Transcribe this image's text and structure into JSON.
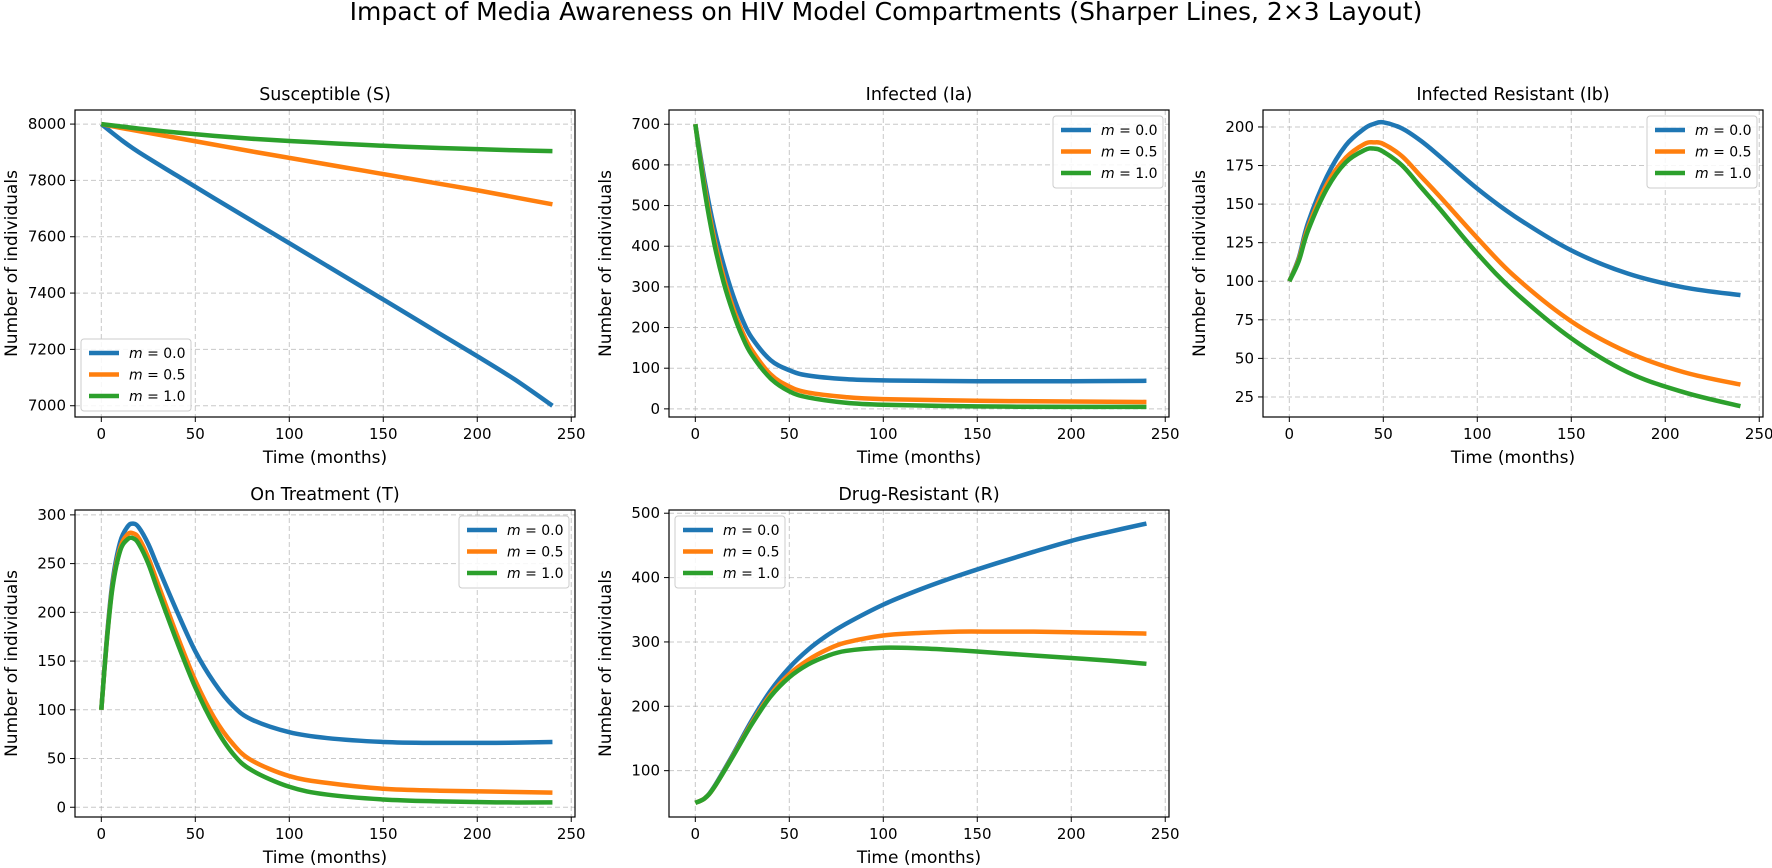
{
  "figure": {
    "title": "Impact of Media Awareness on HIV Model Compartments (Sharper Lines, 2×3 Layout)"
  },
  "colors": {
    "m0": "#1f77b4",
    "m05": "#ff7f0e",
    "m1": "#2ca02c",
    "grid": "#b0b0b0"
  },
  "chart_data": [
    {
      "type": "line",
      "title": "Susceptible (S)",
      "xlabel": "Time (months)",
      "ylabel": "Number of individuals",
      "xlim": [
        -14,
        252
      ],
      "ylim": [
        6960,
        8050
      ],
      "xticks": [
        0,
        50,
        100,
        150,
        200,
        250
      ],
      "yticks": [
        7000,
        7200,
        7400,
        7600,
        7800,
        8000
      ],
      "ytick_labels": [
        "7000",
        "7200",
        "7400",
        "7600",
        "7800",
        "8000"
      ],
      "legend": "lower-left",
      "x": [
        0,
        10,
        20,
        40,
        60,
        80,
        100,
        120,
        140,
        160,
        180,
        200,
        220,
        240
      ],
      "series": [
        {
          "name": "m = 0.0",
          "color": "#1f77b4",
          "values": [
            8000,
            7947,
            7900,
            7818,
            7737,
            7657,
            7577,
            7497,
            7417,
            7337,
            7256,
            7176,
            7093,
            7000
          ]
        },
        {
          "name": "m = 0.5",
          "color": "#ff7f0e",
          "values": [
            8000,
            7987,
            7975,
            7951,
            7927,
            7903,
            7880,
            7857,
            7834,
            7811,
            7788,
            7765,
            7740,
            7715
          ]
        },
        {
          "name": "m = 1.0",
          "color": "#2ca02c",
          "values": [
            8000,
            7992,
            7984,
            7970,
            7958,
            7948,
            7940,
            7933,
            7926,
            7920,
            7915,
            7911,
            7907,
            7904
          ]
        }
      ]
    },
    {
      "type": "line",
      "title": "Infected (Ia)",
      "xlabel": "Time (months)",
      "ylabel": "Number of individuals",
      "xlim": [
        -14,
        252
      ],
      "ylim": [
        -20,
        735
      ],
      "xticks": [
        0,
        50,
        100,
        150,
        200,
        250
      ],
      "yticks": [
        0,
        100,
        200,
        300,
        400,
        500,
        600,
        700
      ],
      "ytick_labels": [
        "0",
        "100",
        "200",
        "300",
        "400",
        "500",
        "600",
        "700"
      ],
      "legend": "top-right",
      "x": [
        0,
        5,
        10,
        15,
        20,
        25,
        30,
        40,
        50,
        60,
        80,
        100,
        150,
        200,
        240
      ],
      "series": [
        {
          "name": "m = 0.0",
          "color": "#1f77b4",
          "values": [
            700,
            560,
            445,
            355,
            280,
            220,
            175,
            120,
            95,
            82,
            73,
            70,
            68,
            68,
            69
          ]
        },
        {
          "name": "m = 0.5",
          "color": "#ff7f0e",
          "values": [
            700,
            545,
            420,
            325,
            250,
            190,
            145,
            85,
            55,
            40,
            29,
            24,
            20,
            18,
            17
          ]
        },
        {
          "name": "m = 1.0",
          "color": "#2ca02c",
          "values": [
            700,
            535,
            408,
            312,
            238,
            178,
            133,
            75,
            43,
            28,
            15,
            10,
            6,
            5,
            5
          ]
        }
      ]
    },
    {
      "type": "line",
      "title": "Infected Resistant (Ib)",
      "xlabel": "Time (months)",
      "ylabel": "Number of individuals",
      "xlim": [
        -14,
        252
      ],
      "ylim": [
        12,
        211
      ],
      "xticks": [
        0,
        50,
        100,
        150,
        200,
        250
      ],
      "yticks": [
        25,
        50,
        75,
        100,
        125,
        150,
        175,
        200
      ],
      "ytick_labels": [
        "25",
        "50",
        "75",
        "100",
        "125",
        "150",
        "175",
        "200"
      ],
      "legend": "top-right",
      "x": [
        0,
        5,
        10,
        20,
        30,
        40,
        45,
        50,
        60,
        70,
        80,
        100,
        120,
        150,
        180,
        210,
        240
      ],
      "series": [
        {
          "name": "m = 0.0",
          "color": "#1f77b4",
          "values": [
            100,
            115,
            138,
            168,
            188,
            199,
            202,
            203,
            199,
            191,
            181,
            160,
            142,
            120,
            105,
            96,
            91
          ]
        },
        {
          "name": "m = 0.5",
          "color": "#ff7f0e",
          "values": [
            100,
            114,
            135,
            163,
            180,
            189,
            190,
            189,
            181,
            168,
            155,
            128,
            103,
            74,
            54,
            41,
            33
          ]
        },
        {
          "name": "m = 1.0",
          "color": "#2ca02c",
          "values": [
            100,
            113,
            133,
            160,
            177,
            185,
            186,
            184,
            175,
            161,
            147,
            118,
            93,
            63,
            41,
            28,
            19
          ]
        }
      ]
    },
    {
      "type": "line",
      "title": "On Treatment (T)",
      "xlabel": "Time (months)",
      "ylabel": "Number of individuals",
      "xlim": [
        -14,
        252
      ],
      "ylim": [
        -10,
        305
      ],
      "xticks": [
        0,
        50,
        100,
        150,
        200,
        250
      ],
      "yticks": [
        0,
        50,
        100,
        150,
        200,
        250,
        300
      ],
      "ytick_labels": [
        "0",
        "50",
        "100",
        "150",
        "200",
        "250",
        "300"
      ],
      "legend": "top-right",
      "x": [
        0,
        3,
        6,
        10,
        14,
        17,
        20,
        25,
        30,
        40,
        50,
        60,
        70,
        80,
        100,
        120,
        150,
        180,
        210,
        240
      ],
      "series": [
        {
          "name": "m = 0.0",
          "color": "#1f77b4",
          "values": [
            100,
            175,
            232,
            272,
            288,
            291,
            287,
            270,
            247,
            202,
            160,
            128,
            104,
            90,
            77,
            71,
            67,
            66,
            66,
            67
          ]
        },
        {
          "name": "m = 0.5",
          "color": "#ff7f0e",
          "values": [
            100,
            173,
            228,
            266,
            280,
            281,
            276,
            256,
            230,
            178,
            130,
            92,
            65,
            48,
            32,
            25,
            19,
            17,
            16,
            15
          ]
        },
        {
          "name": "m = 1.0",
          "color": "#2ca02c",
          "values": [
            100,
            172,
            226,
            263,
            275,
            276,
            270,
            250,
            223,
            171,
            123,
            84,
            55,
            38,
            21,
            13,
            8,
            6,
            5,
            5
          ]
        }
      ]
    },
    {
      "type": "line",
      "title": "Drug-Resistant (R)",
      "xlabel": "Time (months)",
      "ylabel": "Number of individuals",
      "xlim": [
        -14,
        252
      ],
      "ylim": [
        28,
        505
      ],
      "xticks": [
        0,
        50,
        100,
        150,
        200,
        250
      ],
      "yticks": [
        100,
        200,
        300,
        400,
        500
      ],
      "ytick_labels": [
        "100",
        "200",
        "300",
        "400",
        "500"
      ],
      "legend": "top-left",
      "x": [
        0,
        5,
        10,
        20,
        30,
        40,
        50,
        60,
        70,
        80,
        100,
        120,
        140,
        160,
        180,
        200,
        220,
        240
      ],
      "series": [
        {
          "name": "m = 0.0",
          "color": "#1f77b4",
          "values": [
            50,
            57,
            75,
            125,
            178,
            224,
            260,
            288,
            310,
            328,
            358,
            382,
            403,
            422,
            440,
            457,
            471,
            484
          ]
        },
        {
          "name": "m = 0.5",
          "color": "#ff7f0e",
          "values": [
            50,
            57,
            74,
            123,
            174,
            218,
            250,
            272,
            288,
            299,
            310,
            314,
            316,
            316,
            316,
            315,
            314,
            313
          ]
        },
        {
          "name": "m = 1.0",
          "color": "#2ca02c",
          "values": [
            50,
            57,
            74,
            122,
            172,
            215,
            245,
            265,
            278,
            286,
            291,
            290,
            287,
            283,
            279,
            275,
            271,
            266
          ]
        }
      ]
    }
  ]
}
